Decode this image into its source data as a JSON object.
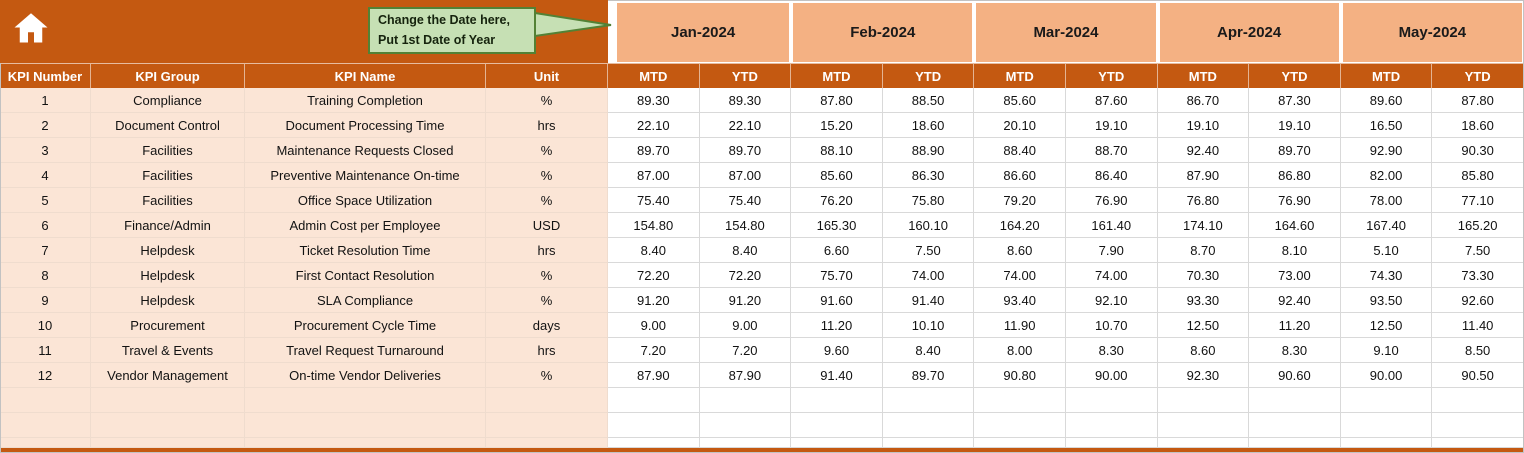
{
  "callout": {
    "line1": "Change the Date here,",
    "line2": "Put 1st Date of Year"
  },
  "months": [
    "Jan-2024",
    "Feb-2024",
    "Mar-2024",
    "Apr-2024",
    "May-2024"
  ],
  "subheaders": {
    "mtd": "MTD",
    "ytd": "YTD"
  },
  "columns": {
    "kpi_number": "KPI Number",
    "kpi_group": "KPI Group",
    "kpi_name": "KPI Name",
    "unit": "Unit"
  },
  "rows": [
    {
      "number": "1",
      "group": "Compliance",
      "name": "Training Completion",
      "unit": "%",
      "values": [
        "89.30",
        "89.30",
        "87.80",
        "88.50",
        "85.60",
        "87.60",
        "86.70",
        "87.30",
        "89.60",
        "87.80"
      ]
    },
    {
      "number": "2",
      "group": "Document Control",
      "name": "Document Processing Time",
      "unit": "hrs",
      "values": [
        "22.10",
        "22.10",
        "15.20",
        "18.60",
        "20.10",
        "19.10",
        "19.10",
        "19.10",
        "16.50",
        "18.60"
      ]
    },
    {
      "number": "3",
      "group": "Facilities",
      "name": "Maintenance Requests Closed",
      "unit": "%",
      "values": [
        "89.70",
        "89.70",
        "88.10",
        "88.90",
        "88.40",
        "88.70",
        "92.40",
        "89.70",
        "92.90",
        "90.30"
      ]
    },
    {
      "number": "4",
      "group": "Facilities",
      "name": "Preventive Maintenance On-time",
      "unit": "%",
      "values": [
        "87.00",
        "87.00",
        "85.60",
        "86.30",
        "86.60",
        "86.40",
        "87.90",
        "86.80",
        "82.00",
        "85.80"
      ]
    },
    {
      "number": "5",
      "group": "Facilities",
      "name": "Office Space Utilization",
      "unit": "%",
      "values": [
        "75.40",
        "75.40",
        "76.20",
        "75.80",
        "79.20",
        "76.90",
        "76.80",
        "76.90",
        "78.00",
        "77.10"
      ]
    },
    {
      "number": "6",
      "group": "Finance/Admin",
      "name": "Admin Cost per Employee",
      "unit": "USD",
      "values": [
        "154.80",
        "154.80",
        "165.30",
        "160.10",
        "164.20",
        "161.40",
        "174.10",
        "164.60",
        "167.40",
        "165.20"
      ]
    },
    {
      "number": "7",
      "group": "Helpdesk",
      "name": "Ticket Resolution Time",
      "unit": "hrs",
      "values": [
        "8.40",
        "8.40",
        "6.60",
        "7.50",
        "8.60",
        "7.90",
        "8.70",
        "8.10",
        "5.10",
        "7.50"
      ]
    },
    {
      "number": "8",
      "group": "Helpdesk",
      "name": "First Contact Resolution",
      "unit": "%",
      "values": [
        "72.20",
        "72.20",
        "75.70",
        "74.00",
        "74.00",
        "74.00",
        "70.30",
        "73.00",
        "74.30",
        "73.30"
      ]
    },
    {
      "number": "9",
      "group": "Helpdesk",
      "name": "SLA Compliance",
      "unit": "%",
      "values": [
        "91.20",
        "91.20",
        "91.60",
        "91.40",
        "93.40",
        "92.10",
        "93.30",
        "92.40",
        "93.50",
        "92.60"
      ]
    },
    {
      "number": "10",
      "group": "Procurement",
      "name": "Procurement Cycle Time",
      "unit": "days",
      "values": [
        "9.00",
        "9.00",
        "11.20",
        "10.10",
        "11.90",
        "10.70",
        "12.50",
        "11.20",
        "12.50",
        "11.40"
      ]
    },
    {
      "number": "11",
      "group": "Travel & Events",
      "name": "Travel Request Turnaround",
      "unit": "hrs",
      "values": [
        "7.20",
        "7.20",
        "9.60",
        "8.40",
        "8.00",
        "8.30",
        "8.60",
        "8.30",
        "9.10",
        "8.50"
      ]
    },
    {
      "number": "12",
      "group": "Vendor Management",
      "name": "On-time Vendor Deliveries",
      "unit": "%",
      "values": [
        "87.90",
        "87.90",
        "91.40",
        "89.70",
        "90.80",
        "90.00",
        "92.30",
        "90.60",
        "90.00",
        "90.50"
      ]
    }
  ],
  "empty_rows": 3,
  "colors": {
    "rust": "#C45911",
    "salmon": "#F4B183",
    "peach": "#FBE5D6",
    "callout_bg": "#C6E0B4",
    "callout_border": "#538135",
    "gridline": "#D9D9D9"
  }
}
